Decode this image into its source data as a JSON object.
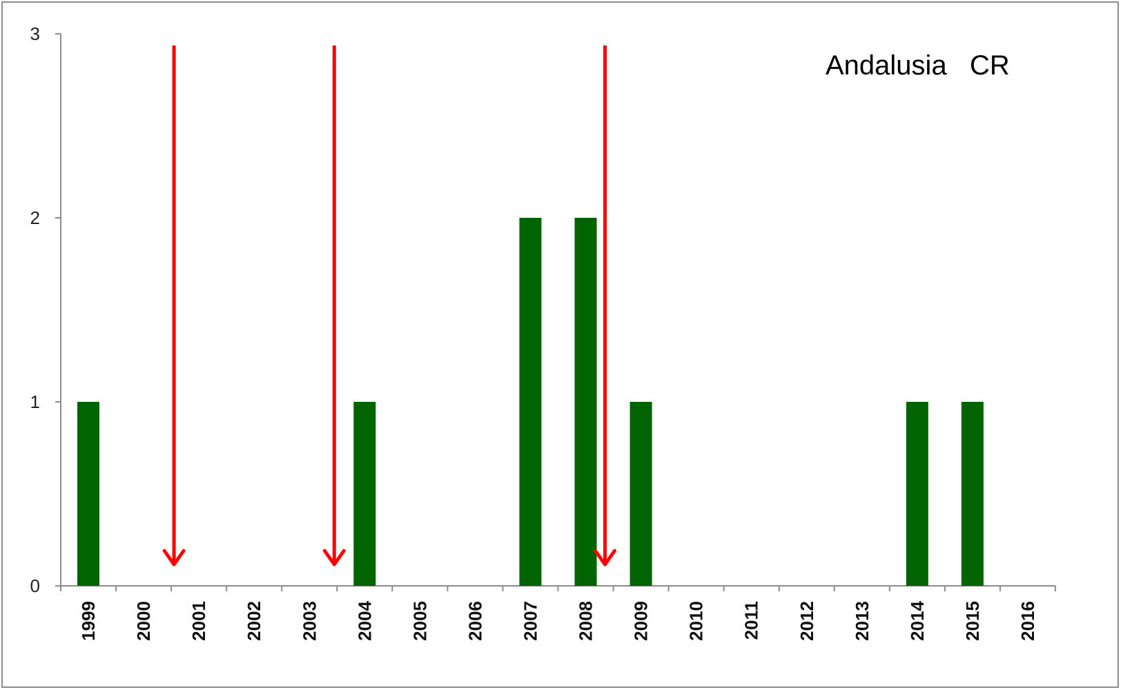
{
  "chart_data": {
    "type": "bar",
    "title": "",
    "xlabel": "",
    "ylabel": "",
    "categories": [
      "1999",
      "2000",
      "2001",
      "2002",
      "2003",
      "2004",
      "2005",
      "2006",
      "2007",
      "2008",
      "2009",
      "2010",
      "2011",
      "2012",
      "2013",
      "2014",
      "2015",
      "2016"
    ],
    "values": [
      1,
      0,
      0,
      0,
      0,
      1,
      0,
      0,
      2,
      2,
      1,
      0,
      0,
      0,
      0,
      1,
      1,
      0
    ],
    "ylim": [
      0,
      3
    ],
    "yticks": [
      "0",
      "1",
      "2",
      "3"
    ],
    "bar_color": "#006400",
    "grid": false,
    "annotations": {
      "text": "Andalusia   CR",
      "arrow_color": "#ff0000",
      "arrows_at_x": [
        2000.55,
        2003.45,
        2008.35
      ]
    }
  }
}
